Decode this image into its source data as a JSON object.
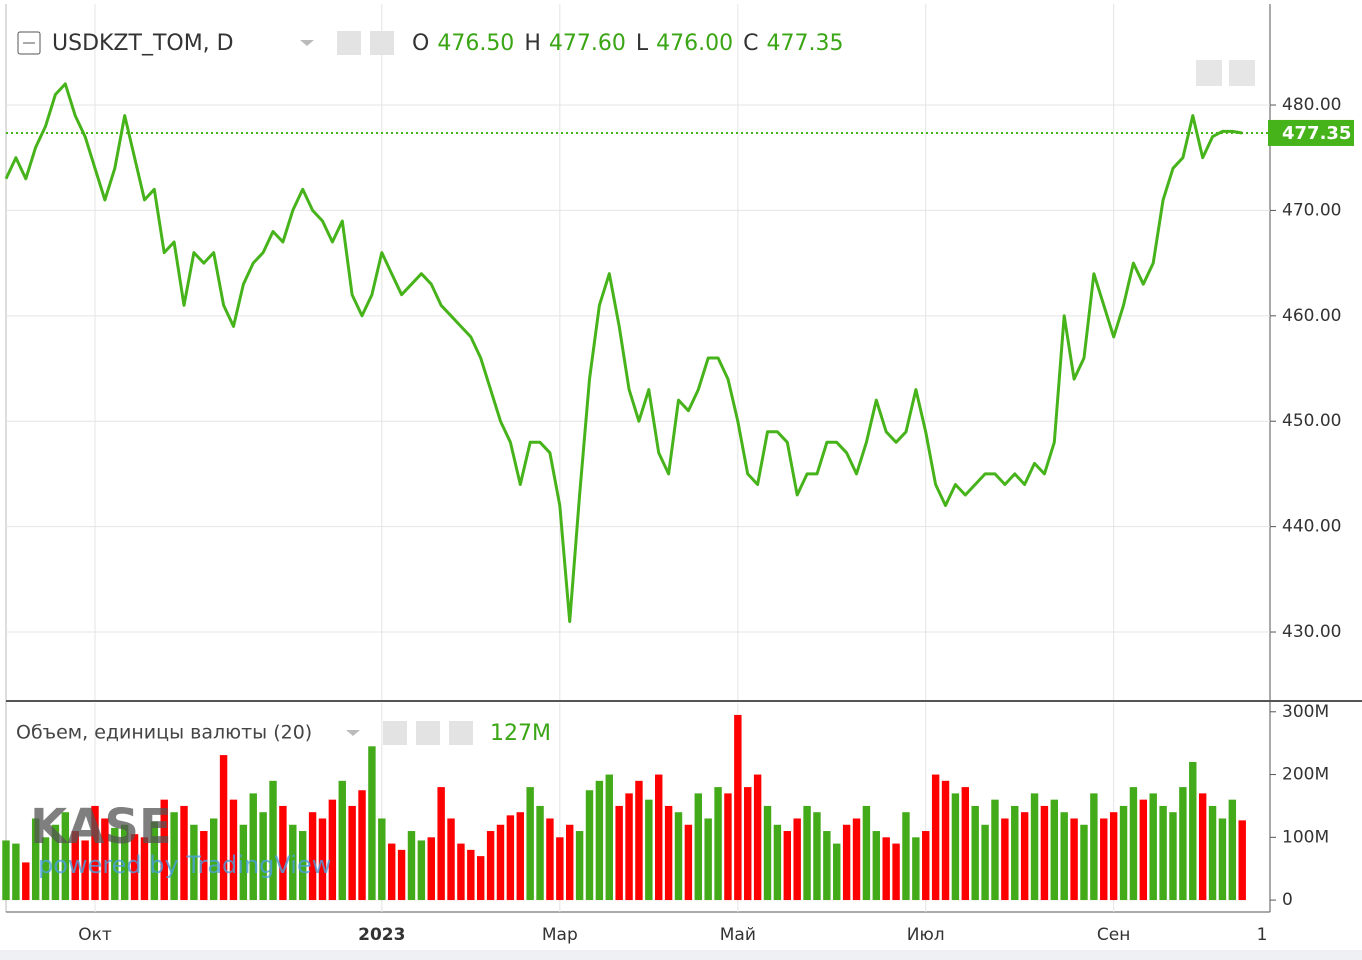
{
  "header": {
    "symbol": "USDKZT_TOM, D",
    "ohlc": [
      {
        "key": "O",
        "value": 476.5,
        "label": "476.50"
      },
      {
        "key": "H",
        "value": 477.6,
        "label": "477.60"
      },
      {
        "key": "L",
        "value": 476,
        "label": "476.00"
      },
      {
        "key": "C",
        "value": 477.35,
        "label": "477.35"
      }
    ]
  },
  "watermark": {
    "logo": "KASE",
    "credit": "powered by TradingView"
  },
  "chart_data": [
    {
      "type": "line",
      "color": "#47b31b",
      "categories": [
        null,
        null,
        null,
        null,
        null,
        null,
        null,
        null,
        null,
        "Окт",
        null,
        null,
        null,
        null,
        null,
        null,
        null,
        null,
        null,
        null,
        null,
        null,
        null,
        null,
        null,
        null,
        null,
        null,
        null,
        null,
        null,
        null,
        null,
        null,
        null,
        null,
        null,
        null,
        "2023",
        null,
        null,
        null,
        null,
        null,
        null,
        null,
        null,
        null,
        null,
        null,
        null,
        null,
        null,
        null,
        null,
        null,
        "Мар",
        null,
        null,
        null,
        null,
        null,
        null,
        null,
        null,
        null,
        null,
        null,
        null,
        null,
        null,
        null,
        null,
        null,
        "Май",
        null,
        null,
        null,
        null,
        null,
        null,
        null,
        null,
        null,
        null,
        null,
        null,
        null,
        null,
        null,
        null,
        null,
        null,
        "Июл",
        null,
        null,
        null,
        null,
        null,
        null,
        null,
        null,
        null,
        null,
        null,
        null,
        null,
        null,
        null,
        null,
        null,
        null,
        "Сен",
        null,
        null,
        null,
        null,
        null,
        null,
        null,
        null,
        null,
        null,
        null,
        null,
        null,
        null,
        "1"
      ],
      "values": [
        473,
        475,
        473,
        476,
        478,
        481,
        482,
        479,
        477,
        474,
        471,
        474,
        479,
        475,
        471,
        472,
        466,
        467,
        461,
        466,
        465,
        466,
        461,
        459,
        463,
        465,
        466,
        468,
        467,
        470,
        472,
        470,
        469,
        467,
        469,
        462,
        460,
        462,
        466,
        464,
        462,
        463,
        464,
        463,
        461,
        460,
        459,
        458,
        456,
        453,
        450,
        448,
        444,
        448,
        448,
        447,
        442,
        431,
        443,
        454,
        461,
        464,
        459,
        453,
        450,
        453,
        447,
        445,
        452,
        451,
        453,
        456,
        456,
        454,
        450,
        445,
        444,
        449,
        449,
        448,
        443,
        445,
        445,
        448,
        448,
        447,
        445,
        448,
        452,
        449,
        448,
        449,
        453,
        449,
        444,
        442,
        444,
        443,
        444,
        445,
        445,
        444,
        445,
        444,
        446,
        445,
        448,
        460,
        454,
        456,
        464,
        461,
        458,
        461,
        465,
        463,
        465,
        471,
        474,
        475,
        479,
        475,
        477,
        477.5,
        477.5,
        477.35,
        null,
        null
      ],
      "ylim": [
        423.55,
        489.49
      ],
      "yticks": [
        {
          "value": 430,
          "label": "430.00"
        },
        {
          "value": 440,
          "label": "440.00"
        },
        {
          "value": 450,
          "label": "450.00"
        },
        {
          "value": 460,
          "label": "460.00"
        },
        {
          "value": 470,
          "label": "470.00"
        },
        {
          "value": 480,
          "label": "480.00"
        }
      ],
      "grid": true
    },
    {
      "type": "bar",
      "title": "Объем, единицы валюты (20)",
      "colors": {
        "up": "#43aa1a",
        "down": "#ff0000"
      },
      "values": [
        95,
        90,
        60,
        130,
        100,
        120,
        140,
        110,
        95,
        150,
        130,
        115,
        120,
        105,
        100,
        125,
        160,
        140,
        150,
        120,
        110,
        130,
        231,
        160,
        120,
        170,
        140,
        190,
        150,
        120,
        110,
        140,
        130,
        160,
        190,
        150,
        175,
        245,
        130,
        90,
        80,
        110,
        95,
        100,
        180,
        130,
        90,
        80,
        70,
        110,
        120,
        135,
        140,
        180,
        150,
        130,
        100,
        120,
        110,
        175,
        190,
        200,
        150,
        170,
        190,
        160,
        200,
        150,
        140,
        120,
        170,
        130,
        180,
        170,
        295,
        180,
        200,
        150,
        120,
        110,
        130,
        150,
        140,
        110,
        90,
        120,
        130,
        150,
        110,
        100,
        90,
        140,
        100,
        110,
        200,
        190,
        170,
        180,
        150,
        120,
        160,
        130,
        150,
        140,
        170,
        150,
        160,
        140,
        130,
        120,
        170,
        130,
        140,
        150,
        180,
        160,
        170,
        150,
        140,
        180,
        220,
        170,
        150,
        130,
        160,
        127,
        null,
        null
      ],
      "current": {
        "value": 127,
        "label": "127M"
      },
      "ylim": [
        -19,
        314
      ],
      "yticks": [
        0,
        {
          "value": 100,
          "label": "100M"
        },
        {
          "value": 200,
          "label": "200M"
        },
        {
          "value": 300,
          "label": "300M"
        }
      ]
    }
  ]
}
